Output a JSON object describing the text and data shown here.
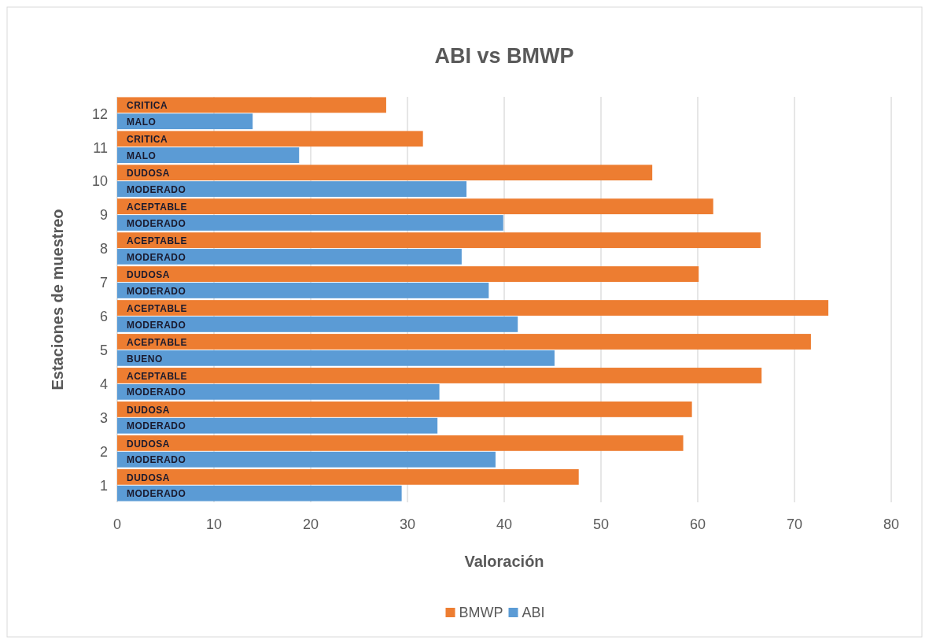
{
  "chart_data": {
    "type": "bar",
    "orientation": "horizontal",
    "title": "ABI vs BMWP",
    "xlabel": "Valoración",
    "ylabel": "Estaciones de muestreo",
    "categories": [
      "12",
      "11",
      "10",
      "9",
      "8",
      "7",
      "6",
      "5",
      "4",
      "3",
      "2",
      "1"
    ],
    "series": [
      {
        "name": "BMWP",
        "color": "#ed7d31",
        "values": [
          27.8,
          31.6,
          55.3,
          61.6,
          66.5,
          60.1,
          73.5,
          71.7,
          66.6,
          59.4,
          58.5,
          47.7
        ],
        "value_labels": [
          "CRITICA",
          "CRITICA",
          "DUDOSA",
          "ACEPTABLE",
          "ACEPTABLE",
          "DUDOSA",
          "ACEPTABLE",
          "ACEPTABLE",
          "ACEPTABLE",
          "DUDOSA",
          "DUDOSA",
          "DUDOSA"
        ]
      },
      {
        "name": "ABI",
        "color": "#5b9bd5",
        "values": [
          14.0,
          18.8,
          36.1,
          39.9,
          35.6,
          38.4,
          41.4,
          45.2,
          33.3,
          33.1,
          39.1,
          29.4
        ],
        "value_labels": [
          "MALO",
          "MALO",
          "MODERADO",
          "MODERADO",
          "MODERADO",
          "MODERADO",
          "MODERADO",
          "BUENO",
          "MODERADO",
          "MODERADO",
          "MODERADO",
          "MODERADO"
        ]
      }
    ],
    "xlim": [
      0,
      80
    ],
    "xticks": [
      0,
      10,
      20,
      30,
      40,
      50,
      60,
      70,
      80
    ],
    "grid": "x",
    "legend": "bottom"
  }
}
